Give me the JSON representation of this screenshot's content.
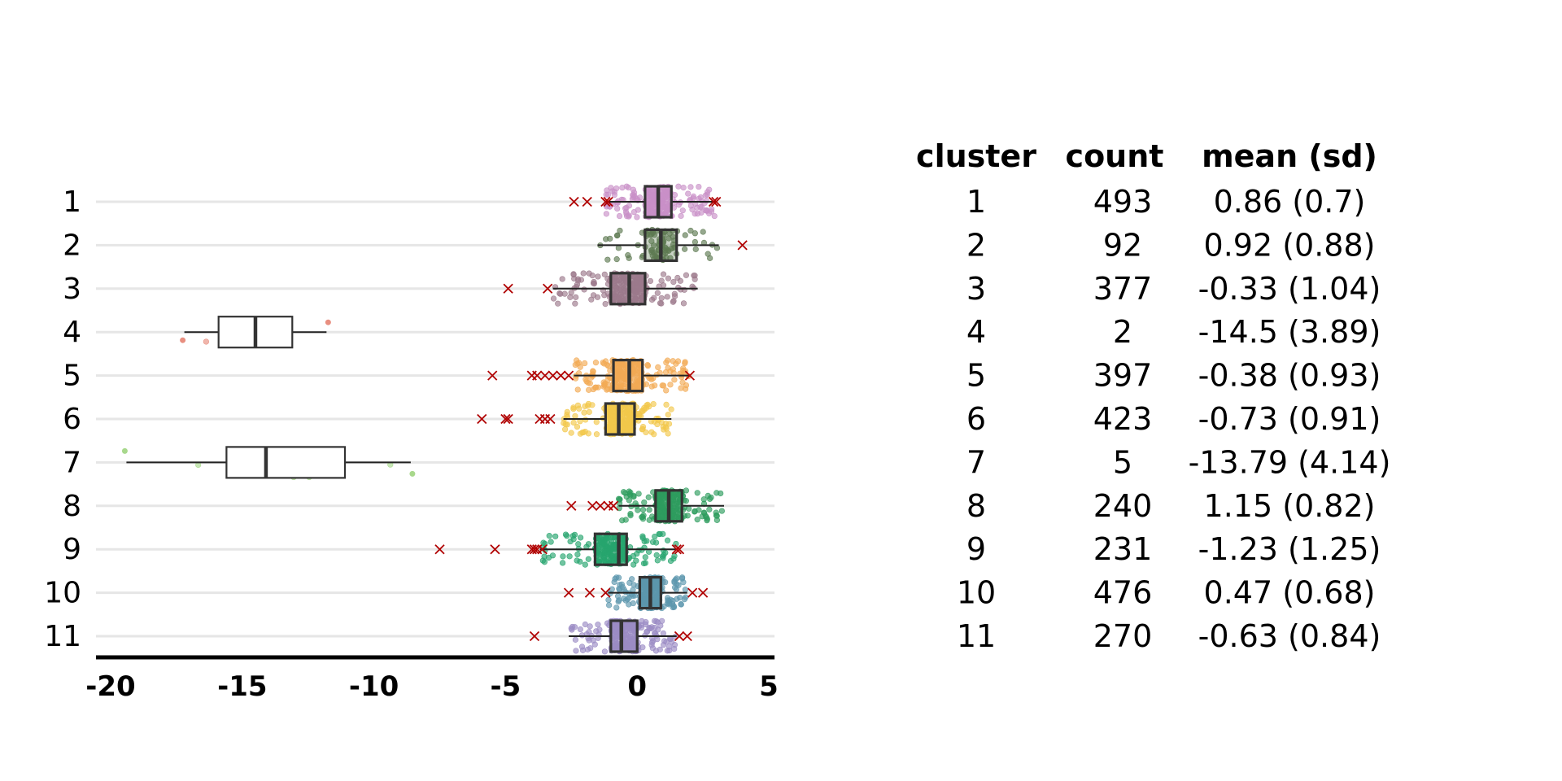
{
  "chart_data": {
    "type": "boxplot",
    "orientation": "horizontal",
    "title": "",
    "xlabel": "",
    "ylabel": "",
    "xlim": [
      -20,
      5
    ],
    "x_ticks": [
      "-20",
      "-15",
      "-10",
      "-5",
      "0",
      "5"
    ],
    "x_tick_values": [
      -20,
      -15,
      -10,
      -5,
      0,
      5
    ],
    "categories": [
      "1",
      "2",
      "3",
      "4",
      "5",
      "6",
      "7",
      "8",
      "9",
      "10",
      "11"
    ],
    "grid": "horizontal lines at each category",
    "outlier_marker": "x",
    "outlier_color": "#b00000",
    "boxes": [
      {
        "cluster": "1",
        "min": -1.2,
        "q1": 0.3,
        "median": 0.8,
        "q3": 1.3,
        "max": 3.0,
        "color": "#c990c8",
        "count": 493,
        "outliers": [
          -2.4,
          -1.9,
          -1.2,
          -1.1,
          2.9,
          3.0
        ]
      },
      {
        "cluster": "2",
        "min": -1.5,
        "q1": 0.3,
        "median": 0.9,
        "q3": 1.5,
        "max": 3.1,
        "color": "#5e7a52",
        "count": 92,
        "outliers": [
          4.0
        ]
      },
      {
        "cluster": "3",
        "min": -3.2,
        "q1": -1.0,
        "median": -0.3,
        "q3": 0.3,
        "max": 2.3,
        "color": "#9c7a8c",
        "count": 377,
        "outliers": [
          -4.9,
          -3.4
        ]
      },
      {
        "cluster": "4",
        "min": -17.2,
        "q1": -15.9,
        "median": -14.5,
        "q3": -13.1,
        "max": -11.8,
        "color": "#e88f80",
        "count": 2,
        "outliers": []
      },
      {
        "cluster": "5",
        "min": -2.4,
        "q1": -0.9,
        "median": -0.3,
        "q3": 0.2,
        "max": 2.0,
        "color": "#f2aa55",
        "count": 397,
        "outliers": [
          -5.5,
          -4.0,
          -3.8,
          -3.5,
          -3.2,
          -2.9,
          -2.6,
          2.0
        ]
      },
      {
        "cluster": "6",
        "min": -2.8,
        "q1": -1.2,
        "median": -0.7,
        "q3": -0.1,
        "max": 1.3,
        "color": "#f2c84b",
        "count": 423,
        "outliers": [
          -5.9,
          -5.0,
          -4.9,
          -3.7,
          -3.5,
          -3.3
        ]
      },
      {
        "cluster": "7",
        "min": -19.4,
        "q1": -15.6,
        "median": -14.1,
        "q3": -11.1,
        "max": -8.6,
        "color": "#a8d88c",
        "count": 5,
        "outliers": []
      },
      {
        "cluster": "8",
        "min": -0.7,
        "q1": 0.7,
        "median": 1.2,
        "q3": 1.7,
        "max": 3.3,
        "color": "#2e9c5e",
        "count": 240,
        "outliers": [
          -2.5,
          -1.7,
          -1.4,
          -1.1,
          -0.9
        ]
      },
      {
        "cluster": "9",
        "min": -3.7,
        "q1": -1.6,
        "median": -0.7,
        "q3": -0.4,
        "max": 1.5,
        "color": "#27a56e",
        "count": 231,
        "outliers": [
          -7.5,
          -5.4,
          -4.0,
          -3.9,
          -3.8,
          -3.6,
          1.5,
          1.6
        ]
      },
      {
        "cluster": "10",
        "min": -1.1,
        "q1": 0.1,
        "median": 0.5,
        "q3": 0.9,
        "max": 1.9,
        "color": "#5c97ad",
        "count": 476,
        "outliers": [
          -2.6,
          -1.8,
          -1.2,
          2.1,
          2.5
        ]
      },
      {
        "cluster": "11",
        "min": -2.6,
        "q1": -1.0,
        "median": -0.6,
        "q3": 0.0,
        "max": 1.5,
        "color": "#9b8cc4",
        "count": 270,
        "outliers": [
          -3.9,
          1.6,
          1.9
        ]
      }
    ],
    "table": {
      "headers": [
        "cluster",
        "count",
        "mean (sd)"
      ],
      "rows": [
        [
          "1",
          "493",
          "0.86 (0.7)"
        ],
        [
          "2",
          "92",
          "0.92 (0.88)"
        ],
        [
          "3",
          "377",
          "-0.33 (1.04)"
        ],
        [
          "4",
          "2",
          "-14.5 (3.89)"
        ],
        [
          "5",
          "397",
          "-0.38 (0.93)"
        ],
        [
          "6",
          "423",
          "-0.73 (0.91)"
        ],
        [
          "7",
          "5",
          "-13.79 (4.14)"
        ],
        [
          "8",
          "240",
          "1.15 (0.82)"
        ],
        [
          "9",
          "231",
          "-1.23 (1.25)"
        ],
        [
          "10",
          "476",
          "0.47 (0.68)"
        ],
        [
          "11",
          "270",
          "-0.63 (0.84)"
        ]
      ]
    }
  }
}
